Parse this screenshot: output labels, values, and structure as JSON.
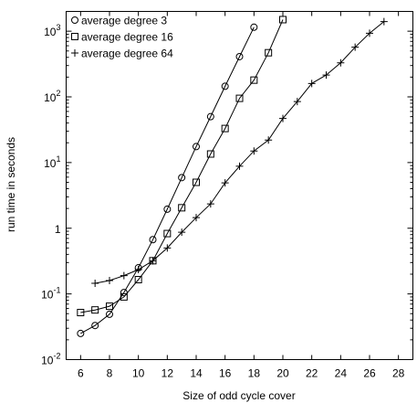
{
  "chart_data": {
    "type": "line",
    "xlabel": "Size of odd cycle cover",
    "ylabel": "run time in seconds",
    "xlim": [
      5,
      29
    ],
    "ylim": [
      0.01,
      2000
    ],
    "yscale": "log",
    "grid": false,
    "legend_position": "top-left",
    "x_ticks": [
      6,
      8,
      10,
      12,
      14,
      16,
      18,
      20,
      22,
      24,
      26,
      28
    ],
    "y_ticks": [
      0.01,
      0.1,
      1,
      10,
      100,
      1000
    ],
    "y_tick_labels": [
      {
        "base": "10",
        "exp": "-2"
      },
      {
        "base": "10",
        "exp": "-1"
      },
      {
        "base": "1",
        "exp": ""
      },
      {
        "base": "10",
        "exp": "1"
      },
      {
        "base": "10",
        "exp": "2"
      },
      {
        "base": "10",
        "exp": "3"
      }
    ],
    "series": [
      {
        "name": "average degree 3",
        "marker": "circle",
        "x": [
          6,
          7,
          8,
          9,
          10,
          11,
          12,
          13,
          14,
          15,
          16,
          17,
          18
        ],
        "y": [
          0.025,
          0.033,
          0.049,
          0.105,
          0.25,
          0.67,
          1.95,
          5.9,
          17.5,
          50,
          145,
          410,
          1150
        ]
      },
      {
        "name": "average degree 16",
        "marker": "square",
        "x": [
          6,
          7,
          8,
          9,
          10,
          11,
          12,
          13,
          14,
          15,
          16,
          17,
          18,
          19,
          20
        ],
        "y": [
          0.052,
          0.057,
          0.065,
          0.09,
          0.165,
          0.32,
          0.83,
          2.05,
          5.0,
          13.5,
          33,
          95,
          180,
          470,
          1500
        ]
      },
      {
        "name": "average degree 64",
        "marker": "plus",
        "x": [
          7,
          8,
          9,
          10,
          11,
          12,
          13,
          14,
          15,
          16,
          17,
          18,
          19,
          20,
          21,
          22,
          23,
          24,
          25,
          26,
          27
        ],
        "y": [
          0.145,
          0.16,
          0.19,
          0.235,
          0.32,
          0.5,
          0.87,
          1.45,
          2.35,
          4.9,
          8.8,
          15,
          22,
          47,
          85,
          160,
          215,
          330,
          570,
          930,
          1400
        ]
      }
    ]
  }
}
